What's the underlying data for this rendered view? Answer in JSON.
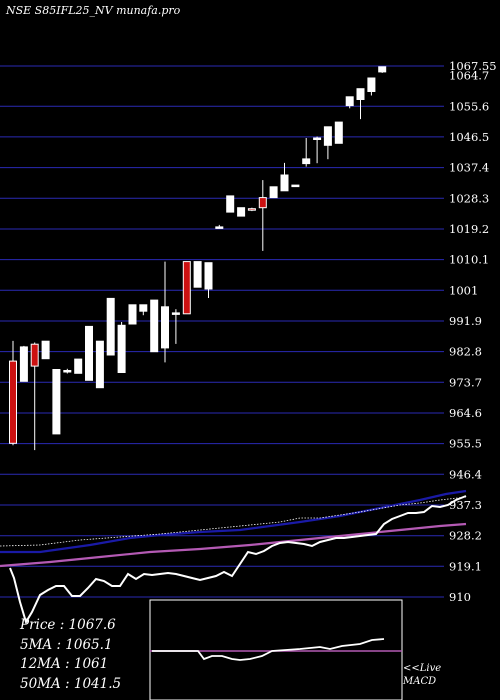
{
  "header": {
    "title": "NSE S85IFL25_NV munafa.pro"
  },
  "stats": {
    "price": "Price    : 1067.6",
    "ma5": "5MA : 1065.1",
    "ma12": "12MA : 1061",
    "ma50": "50MA : 1041.5"
  },
  "macd_panel": {
    "live": "<<Live",
    "name": "MACD"
  },
  "colors": {
    "background": "#000000",
    "gridline": "#2a2ab4",
    "candle_up": "#ffffff",
    "candle_down": "#cc1111",
    "ma_blue": "#1a1aa6",
    "ma_magenta": "#b45ab4",
    "macd_box": "#ffffff",
    "macd_signal": "#b45ab4"
  },
  "chart_data": {
    "type": "candlestick",
    "ylim": [
      901,
      1071
    ],
    "y_ticks": [
      "1067.55",
      "1055.6",
      "1046.5",
      "1037.4",
      "1028.3",
      "1019.2",
      "1010.1",
      "1001",
      "991.9",
      "982.8",
      "973.7",
      "964.6",
      "955.5",
      "946.4",
      "937.3",
      "928.2",
      "919.1",
      "910"
    ],
    "y_tick_values": [
      1067.55,
      1055.6,
      1046.5,
      1037.4,
      1028.3,
      1019.2,
      1010.1,
      1001,
      991.9,
      982.8,
      973.7,
      964.6,
      955.5,
      946.4,
      937.3,
      928.2,
      919.1,
      910
    ],
    "last_price_label": "1064.7",
    "last_price_value": 1064.7,
    "candles": [
      {
        "o": 980.0,
        "h": 986.0,
        "l": 955.0,
        "c": 955.6,
        "dir": "down"
      },
      {
        "o": 974.0,
        "h": 984.5,
        "l": 974.0,
        "c": 984.2,
        "dir": "up"
      },
      {
        "o": 985.0,
        "h": 985.5,
        "l": 953.6,
        "c": 978.5,
        "dir": "down"
      },
      {
        "o": 980.7,
        "h": 985.9,
        "l": 980.7,
        "c": 985.9,
        "dir": "up"
      },
      {
        "o": 958.4,
        "h": 977.5,
        "l": 958.4,
        "c": 977.5,
        "dir": "up"
      },
      {
        "o": 977.2,
        "h": 977.7,
        "l": 976.3,
        "c": 976.8,
        "dir": "up"
      },
      {
        "o": 976.4,
        "h": 980.6,
        "l": 976.4,
        "c": 980.6,
        "dir": "up"
      },
      {
        "o": 974.3,
        "h": 990.3,
        "l": 974.3,
        "c": 990.3,
        "dir": "up"
      },
      {
        "o": 985.9,
        "h": 985.9,
        "l": 972.1,
        "c": 972.1,
        "dir": "up"
      },
      {
        "o": 981.8,
        "h": 998.6,
        "l": 981.8,
        "c": 998.6,
        "dir": "up"
      },
      {
        "o": 990.6,
        "h": 991.6,
        "l": 976.6,
        "c": 976.6,
        "dir": "up"
      },
      {
        "o": 991.0,
        "h": 996.7,
        "l": 991.0,
        "c": 996.7,
        "dir": "up"
      },
      {
        "o": 994.8,
        "h": 996.8,
        "l": 993.6,
        "c": 996.7,
        "dir": "up"
      },
      {
        "o": 982.8,
        "h": 998.1,
        "l": 982.8,
        "c": 998.1,
        "dir": "up"
      },
      {
        "o": 983.9,
        "h": 1009.5,
        "l": 979.6,
        "c": 996.1,
        "dir": "up"
      },
      {
        "o": 994.3,
        "h": 995.4,
        "l": 985.1,
        "c": 994.3,
        "dir": "up"
      },
      {
        "o": 1009.5,
        "h": 1009.5,
        "l": 994.0,
        "c": 994.0,
        "dir": "down"
      },
      {
        "o": 1001.9,
        "h": 1009.5,
        "l": 1001.9,
        "c": 1009.5,
        "dir": "up"
      },
      {
        "o": 1001.4,
        "h": 1009.2,
        "l": 998.7,
        "c": 1009.2,
        "dir": "up"
      },
      {
        "o": 1019.4,
        "h": 1020.4,
        "l": 1019.4,
        "c": 1019.8,
        "dir": "up"
      },
      {
        "o": 1024.2,
        "h": 1029.0,
        "l": 1024.2,
        "c": 1029.0,
        "dir": "up"
      },
      {
        "o": 1025.5,
        "h": 1025.5,
        "l": 1023.0,
        "c": 1023.0,
        "dir": "up"
      },
      {
        "o": 1025.2,
        "h": 1025.5,
        "l": 1024.5,
        "c": 1025.0,
        "dir": "down"
      },
      {
        "o": 1028.5,
        "h": 1033.7,
        "l": 1012.7,
        "c": 1025.5,
        "dir": "down"
      },
      {
        "o": 1028.5,
        "h": 1031.7,
        "l": 1028.5,
        "c": 1031.7,
        "dir": "up"
      },
      {
        "o": 1030.5,
        "h": 1038.8,
        "l": 1030.5,
        "c": 1035.2,
        "dir": "up"
      },
      {
        "o": 1032.2,
        "h": 1032.2,
        "l": 1031.9,
        "c": 1032.2,
        "dir": "up"
      },
      {
        "o": 1038.6,
        "h": 1046.2,
        "l": 1037.7,
        "c": 1040.0,
        "dir": "up"
      },
      {
        "o": 1046.2,
        "h": 1046.6,
        "l": 1038.7,
        "c": 1046.2,
        "dir": "up"
      },
      {
        "o": 1044.0,
        "h": 1049.5,
        "l": 1039.9,
        "c": 1049.5,
        "dir": "up"
      },
      {
        "o": 1044.6,
        "h": 1050.9,
        "l": 1044.6,
        "c": 1050.9,
        "dir": "up"
      },
      {
        "o": 1055.8,
        "h": 1058.4,
        "l": 1055.0,
        "c": 1058.4,
        "dir": "up"
      },
      {
        "o": 1057.6,
        "h": 1060.8,
        "l": 1051.8,
        "c": 1060.8,
        "dir": "up"
      },
      {
        "o": 1060.0,
        "h": 1064.0,
        "l": 1058.8,
        "c": 1064.0,
        "dir": "up"
      },
      {
        "o": 1065.8,
        "h": 1067.3,
        "l": 1065.5,
        "c": 1067.3,
        "dir": "up"
      }
    ]
  }
}
